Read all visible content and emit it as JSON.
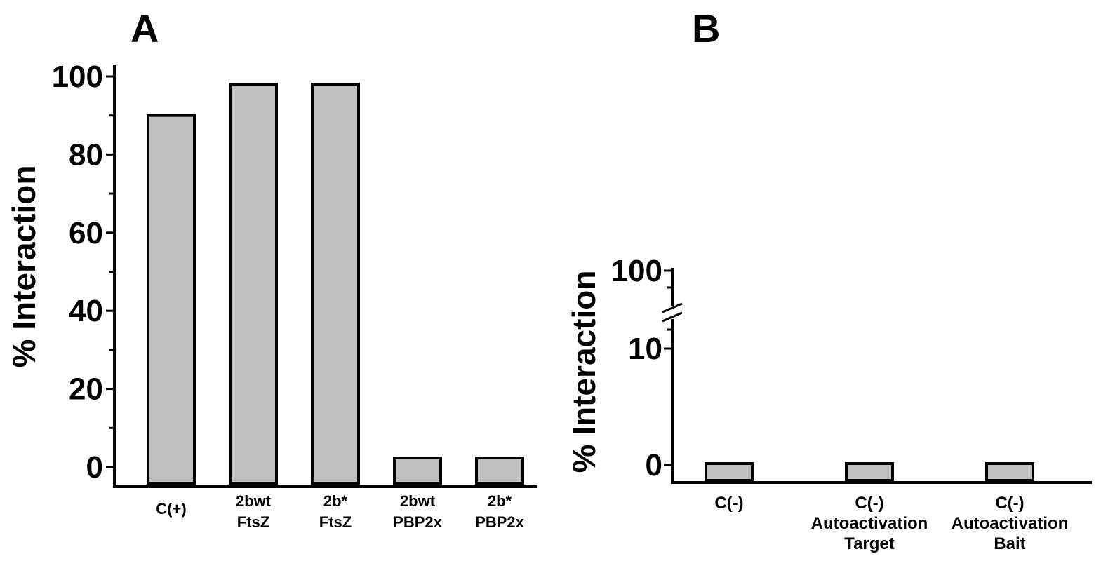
{
  "chart_data": [
    {
      "panel": "A",
      "type": "bar",
      "categories": [
        [
          "C(+)"
        ],
        [
          "2bwt",
          "FtsZ"
        ],
        [
          "2b*",
          "FtsZ"
        ],
        [
          "2bwt",
          "PBP2x"
        ],
        [
          "2b*",
          "PBP2x"
        ]
      ],
      "values": [
        90,
        98,
        98,
        0,
        0
      ],
      "ylabel": "% Interaction",
      "ylim": [
        0,
        100
      ],
      "yticks": [
        "0",
        "20",
        "40",
        "60",
        "80",
        "100"
      ],
      "grid": false
    },
    {
      "panel": "B",
      "type": "bar",
      "categories": [
        [
          "C(-)"
        ],
        [
          "C(-)",
          "Autoactivation",
          "Target"
        ],
        [
          "C(-)",
          "Autoactivation",
          "Bait"
        ]
      ],
      "values": [
        0,
        0,
        0
      ],
      "ylabel": "% Interaction",
      "yticks": [
        "0",
        "10",
        "100"
      ],
      "axis_break": true,
      "grid": false
    }
  ]
}
